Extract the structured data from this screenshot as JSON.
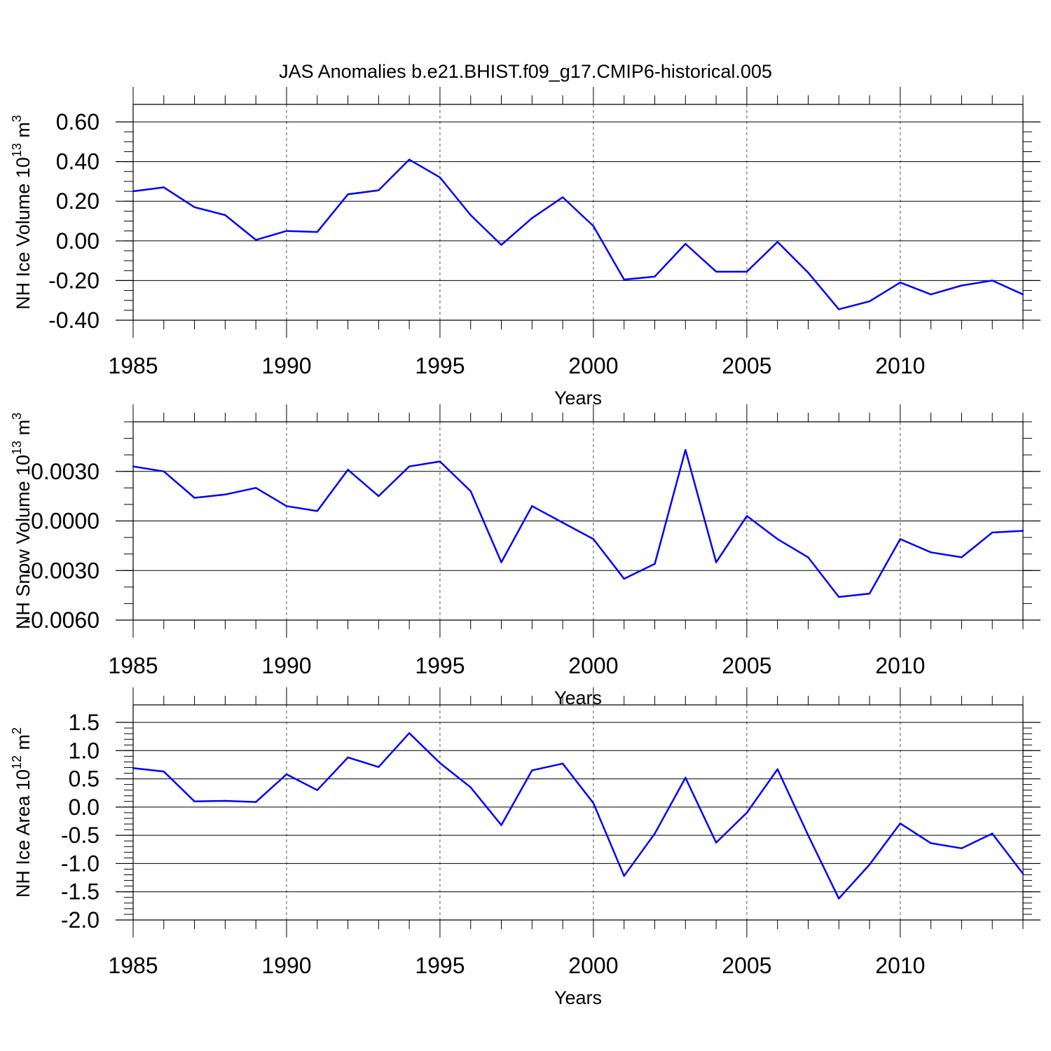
{
  "title": "JAS Anomalies b.e21.BHIST.f09_g17.CMIP6-historical.005",
  "line_color": "#0000ff",
  "chart_data": [
    {
      "type": "line",
      "ylabel": "NH Ice Volume 10",
      "ylabel_exp": "13",
      "ylabel_unit": " m",
      "ylabel_unit_exp": "3",
      "xlabel": "Years",
      "x": [
        1985,
        1986,
        1987,
        1988,
        1989,
        1990,
        1991,
        1992,
        1993,
        1994,
        1995,
        1996,
        1997,
        1998,
        1999,
        2000,
        2001,
        2002,
        2003,
        2004,
        2005,
        2006,
        2007,
        2008,
        2009,
        2010,
        2011,
        2012,
        2013,
        2014
      ],
      "values": [
        0.25,
        0.27,
        0.17,
        0.13,
        0.005,
        0.05,
        0.045,
        0.235,
        0.255,
        0.41,
        0.32,
        0.13,
        -0.02,
        0.115,
        0.22,
        0.075,
        -0.195,
        -0.18,
        -0.015,
        -0.155,
        -0.155,
        -0.005,
        -0.16,
        -0.345,
        -0.305,
        -0.21,
        -0.27,
        -0.225,
        -0.2,
        -0.27
      ],
      "ylim": [
        -0.4,
        0.6
      ],
      "xlim": [
        1985,
        2014
      ],
      "yticks": [
        -0.4,
        -0.2,
        0.0,
        0.2,
        0.4,
        0.6
      ],
      "yticklabels": [
        "-0.40",
        "-0.20",
        "0.00",
        "0.20",
        "0.40",
        "0.60"
      ],
      "yminor_step": 0.05,
      "xticks": [
        1985,
        1990,
        1995,
        2000,
        2005,
        2010
      ],
      "xticklabels": [
        "1985",
        "1990",
        "1995",
        "2000",
        "2005",
        "2010"
      ],
      "vgrid_dashed": true
    },
    {
      "type": "line",
      "ylabel": "NH Snow Volume 10",
      "ylabel_exp": "13",
      "ylabel_unit": " m",
      "ylabel_unit_exp": "3",
      "xlabel": "Years",
      "x": [
        1985,
        1986,
        1987,
        1988,
        1989,
        1990,
        1991,
        1992,
        1993,
        1994,
        1995,
        1996,
        1997,
        1998,
        1999,
        2000,
        2001,
        2002,
        2003,
        2004,
        2005,
        2006,
        2007,
        2008,
        2009,
        2010,
        2011,
        2012,
        2013,
        2014
      ],
      "values": [
        0.0033,
        0.003,
        0.0014,
        0.0016,
        0.002,
        0.0009,
        0.0006,
        0.0031,
        0.0015,
        0.0033,
        0.0036,
        0.0018,
        -0.0025,
        0.0009,
        -0.0001,
        -0.0011,
        -0.0035,
        -0.0026,
        0.0043,
        -0.0025,
        0.0003,
        -0.0011,
        -0.0022,
        -0.0046,
        -0.0044,
        -0.0011,
        -0.0019,
        -0.0022,
        -0.0007,
        -0.0006
      ],
      "ylim": [
        -0.006,
        0.006
      ],
      "xlim": [
        1985,
        2014
      ],
      "yticks": [
        -0.006,
        -0.003,
        0.0,
        0.003
      ],
      "yticklabels": [
        "-0.0060",
        "-0.0030",
        "0.0000",
        "0.0030"
      ],
      "yminor_step": 0.001,
      "xticks": [
        1985,
        1990,
        1995,
        2000,
        2005,
        2010
      ],
      "xticklabels": [
        "1985",
        "1990",
        "1995",
        "2000",
        "2005",
        "2010"
      ],
      "vgrid_dashed": true
    },
    {
      "type": "line",
      "ylabel": "NH Ice Area 10",
      "ylabel_exp": "12",
      "ylabel_unit": " m",
      "ylabel_unit_exp": "2",
      "xlabel": "Years",
      "x": [
        1985,
        1986,
        1987,
        1988,
        1989,
        1990,
        1991,
        1992,
        1993,
        1994,
        1995,
        1996,
        1997,
        1998,
        1999,
        2000,
        2001,
        2002,
        2003,
        2004,
        2005,
        2006,
        2007,
        2008,
        2009,
        2010,
        2011,
        2012,
        2013,
        2014
      ],
      "values": [
        0.69,
        0.63,
        0.1,
        0.11,
        0.09,
        0.58,
        0.3,
        0.88,
        0.71,
        1.31,
        0.78,
        0.35,
        -0.32,
        0.65,
        0.77,
        0.07,
        -1.22,
        -0.47,
        0.52,
        -0.63,
        -0.1,
        0.67,
        -0.5,
        -1.62,
        -1.02,
        -0.29,
        -0.64,
        -0.73,
        -0.47,
        -1.18
      ],
      "ylim": [
        -2.0,
        1.5
      ],
      "xlim": [
        1985,
        2014
      ],
      "yticks": [
        -2.0,
        -1.5,
        -1.0,
        -0.5,
        0.0,
        0.5,
        1.0,
        1.5
      ],
      "yticklabels": [
        "-2.0",
        "-1.5",
        "-1.0",
        "-0.5",
        "0.0",
        "0.5",
        "1.0",
        "1.5"
      ],
      "yminor_step": 0.1,
      "xticks": [
        1985,
        1990,
        1995,
        2000,
        2005,
        2010
      ],
      "xticklabels": [
        "1985",
        "1990",
        "1995",
        "2000",
        "2005",
        "2010"
      ],
      "vgrid_dashed": true
    }
  ]
}
